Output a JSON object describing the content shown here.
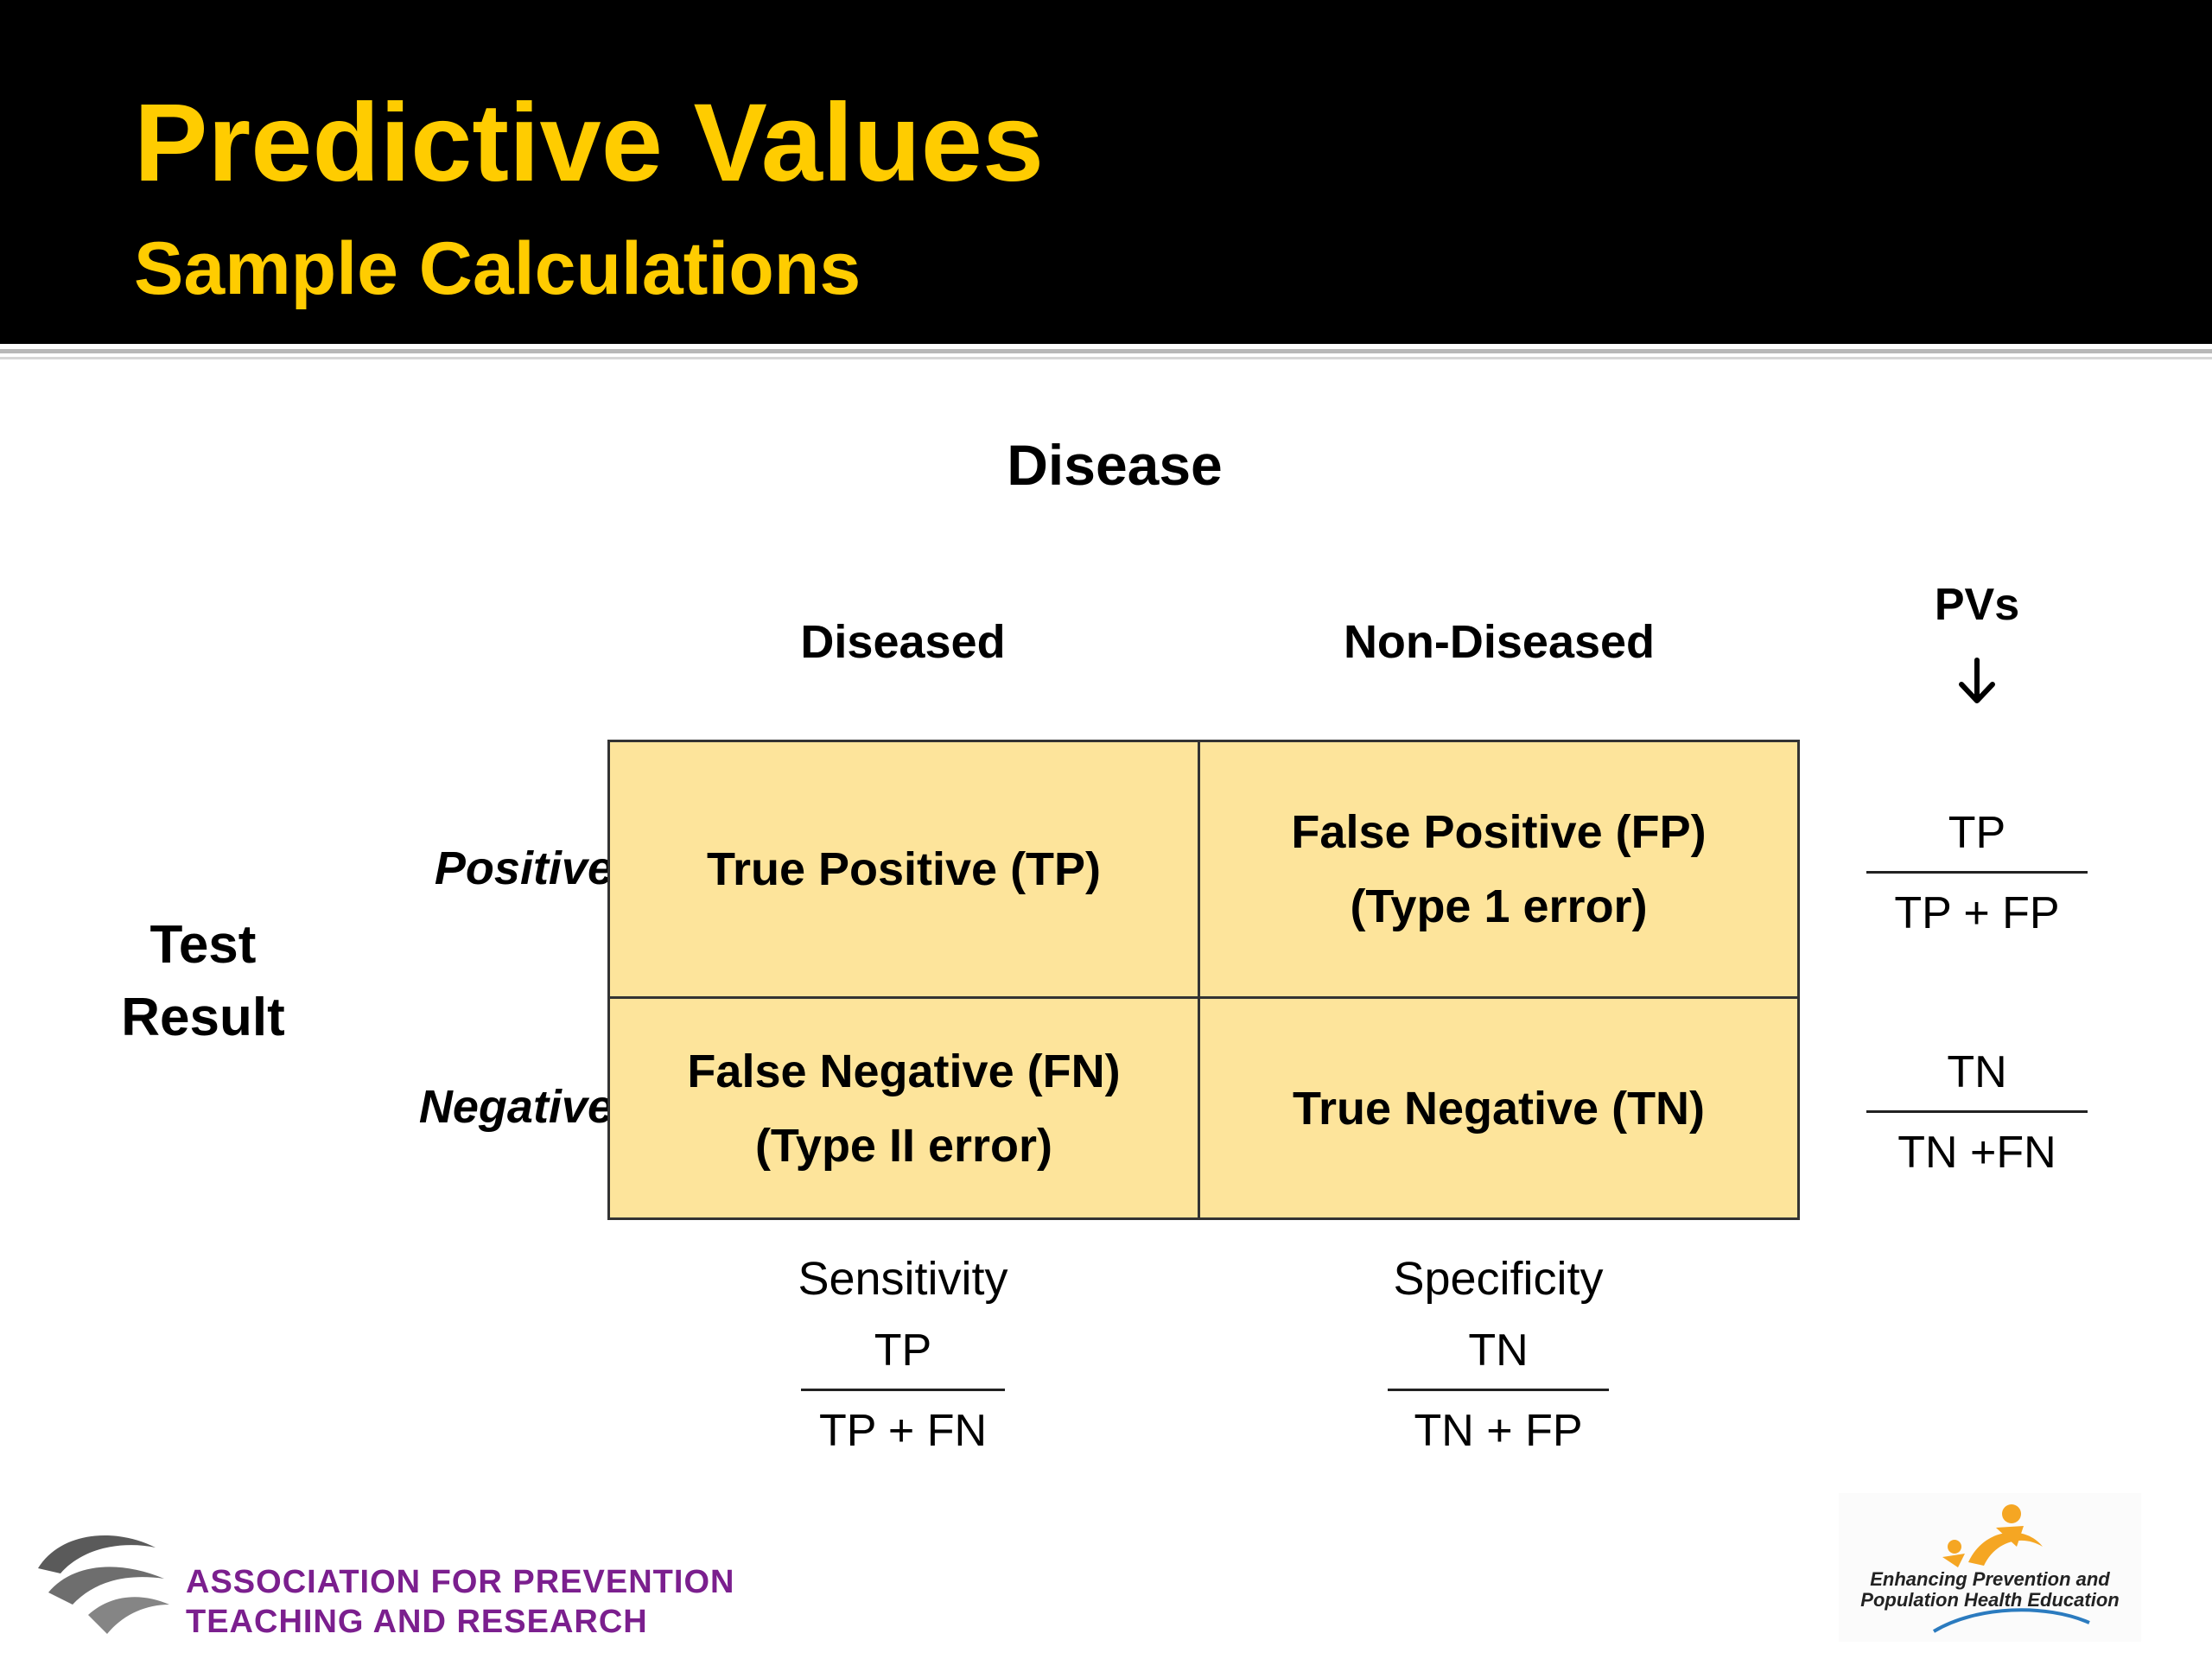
{
  "slide": {
    "title": "Predictive Values",
    "subtitle": "Sample Calculations"
  },
  "table": {
    "column_group_label": "Disease",
    "columns": [
      "Diseased",
      "Non-Diseased"
    ],
    "row_group_label": [
      "Test",
      "Result"
    ],
    "rows": [
      "Positive",
      "Negative"
    ],
    "cells": [
      [
        [
          "True Positive (TP)"
        ],
        [
          "False Positive (FP)",
          "(Type 1 error)"
        ]
      ],
      [
        [
          "False Negative (FN)",
          "(Type II error)"
        ],
        [
          "True Negative (TN)"
        ]
      ]
    ],
    "cell_fill": "#fde49b"
  },
  "pvs": {
    "header": "PVs",
    "arrow_icon": "down-arrow-icon",
    "positive": {
      "numerator": "TP",
      "denominator": "TP + FP"
    },
    "negative": {
      "numerator": "TN",
      "denominator": "TN +FN"
    }
  },
  "column_metrics": [
    {
      "name": "Sensitivity",
      "numerator": "TP",
      "denominator": "TP + FN"
    },
    {
      "name": "Specificity",
      "numerator": "TN",
      "denominator": "TN + FP"
    }
  ],
  "logos": {
    "left_org": [
      "ASSOCIATION FOR PREVENTION",
      "TEACHING AND RESEARCH"
    ],
    "right_tagline": [
      "Enhancing Prevention and",
      "Population Health Education"
    ]
  },
  "colors": {
    "title": "#ffcc00",
    "header_background": "#000000",
    "org_text": "#7b1f8e",
    "logo_orange": "#f5a623"
  }
}
